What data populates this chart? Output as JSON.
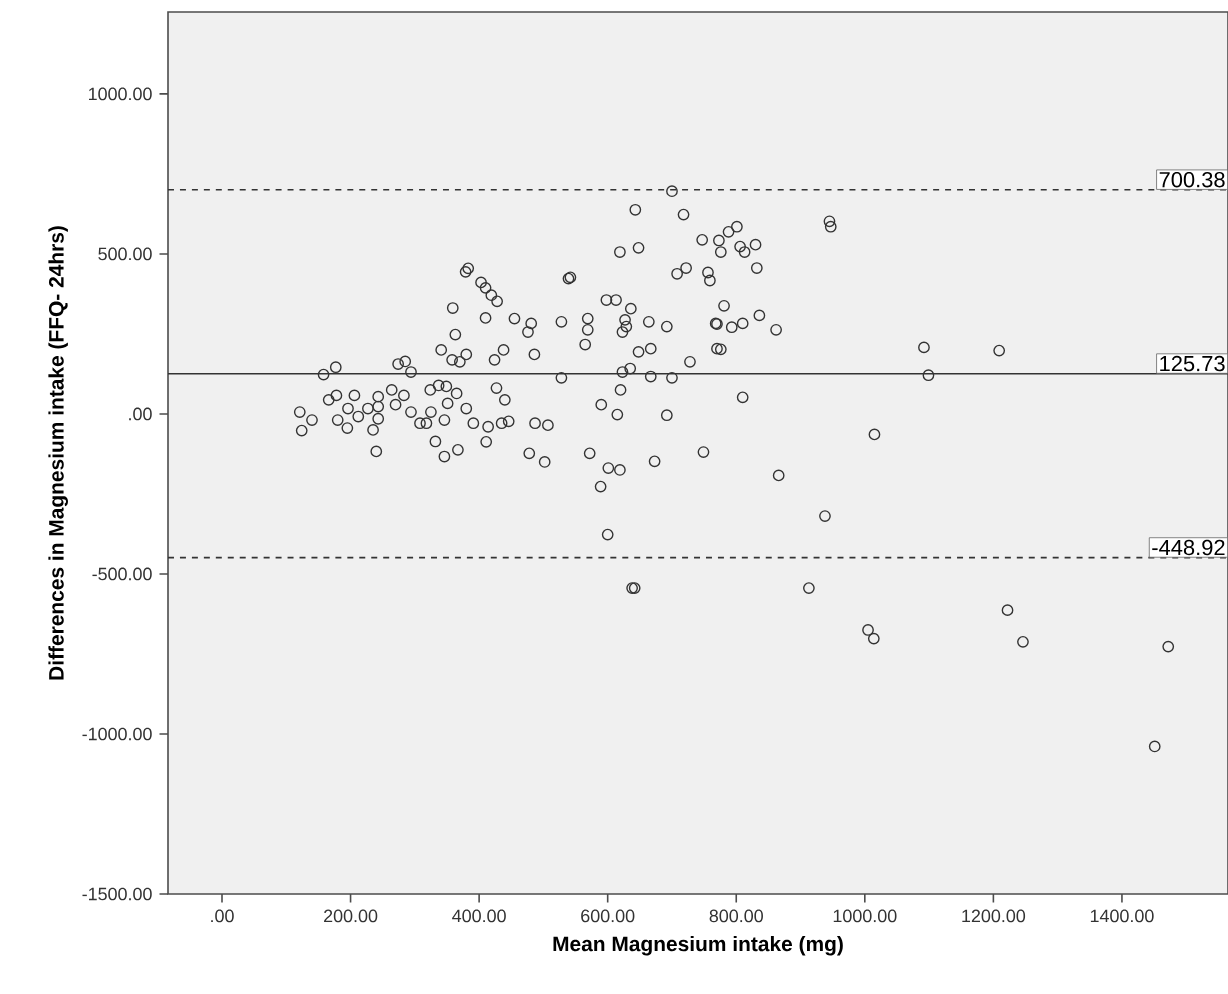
{
  "chart_data": {
    "type": "scatter",
    "xlabel": "Mean Magnesium intake (mg)",
    "ylabel": "Differences in Magnesium intake (FFQ- 24hrs)",
    "xlim": [
      -84,
      1565
    ],
    "ylim": [
      -1500,
      1256
    ],
    "xticks": [
      {
        "value": 0,
        "label": ".00"
      },
      {
        "value": 200,
        "label": "200.00"
      },
      {
        "value": 400,
        "label": "400.00"
      },
      {
        "value": 600,
        "label": "600.00"
      },
      {
        "value": 800,
        "label": "800.00"
      },
      {
        "value": 1000,
        "label": "1000.00"
      },
      {
        "value": 1200,
        "label": "1200.00"
      },
      {
        "value": 1400,
        "label": "1400.00"
      }
    ],
    "yticks": [
      {
        "value": -1500,
        "label": "-1500.00"
      },
      {
        "value": -1000,
        "label": "-1000.00"
      },
      {
        "value": -500,
        "label": "-500.00"
      },
      {
        "value": 0,
        "label": ".00"
      },
      {
        "value": 500,
        "label": "500.00"
      },
      {
        "value": 1000,
        "label": "1000.00"
      }
    ],
    "marker": "circle",
    "ref_lines": [
      {
        "axis": "y",
        "value": 700.38,
        "label": "700.38",
        "line_style": "dashed",
        "color": "#333333"
      },
      {
        "axis": "y",
        "value": 125.73,
        "label": "125.73",
        "line_style": "solid",
        "color": "#333333"
      },
      {
        "axis": "y",
        "value": -448.92,
        "label": "-448.92",
        "line_style": "dashed",
        "color": "#333333"
      }
    ],
    "series": [
      {
        "color": "#333333",
        "x": [
          121,
          124,
          140,
          158,
          177,
          166,
          178,
          180,
          195,
          196,
          206,
          212,
          227,
          235,
          240,
          243,
          243,
          243,
          264,
          270,
          274,
          285,
          283,
          294,
          294,
          308,
          318,
          324,
          325,
          332,
          337,
          341,
          346,
          346,
          349,
          351,
          358,
          359,
          363,
          365,
          367,
          370,
          380,
          380,
          391,
          410,
          411,
          414,
          424,
          427,
          438,
          435,
          440,
          446,
          455,
          476,
          478,
          481,
          486,
          487,
          502,
          507,
          528,
          528,
          565,
          569,
          569,
          572,
          590,
          589,
          601,
          600,
          619,
          615,
          620,
          623,
          635,
          623,
          629,
          638,
          642,
          648,
          667,
          667,
          664,
          673,
          692,
          692,
          700,
          728,
          749,
          770,
          770,
          379,
          383,
          403,
          410,
          419,
          428,
          539,
          542,
          619,
          648,
          643,
          700,
          718,
          747,
          708,
          722,
          756,
          759,
          598,
          613,
          636,
          627,
          773,
          788,
          801,
          776,
          806,
          813,
          830,
          832,
          781,
          768,
          793,
          810,
          836,
          862,
          776,
          810,
          866,
          945,
          947,
          1092,
          1099,
          1209,
          1015,
          938,
          913,
          1005,
          1014,
          1222,
          1246,
          1472,
          1451
        ],
        "values": [
          6,
          -52,
          -19,
          123,
          146,
          44,
          58,
          -19,
          -44,
          17,
          58,
          -8,
          17,
          -50,
          -117,
          -15,
          54,
          23,
          75,
          29,
          156,
          164,
          58,
          131,
          6,
          -29,
          -29,
          75,
          6,
          -86,
          89,
          200,
          -133,
          -19,
          86,
          33,
          169,
          331,
          248,
          64,
          -112,
          163,
          186,
          17,
          -29,
          300,
          -87,
          -40,
          169,
          81,
          200,
          -29,
          44,
          -23,
          298,
          256,
          -123,
          283,
          186,
          -29,
          -150,
          -35,
          288,
          113,
          217,
          263,
          298,
          -123,
          29,
          -227,
          -169,
          -377,
          -175,
          -2,
          75,
          131,
          142,
          256,
          273,
          -544,
          -544,
          194,
          204,
          117,
          288,
          -148,
          273,
          -4,
          113,
          163,
          -119,
          204,
          281,
          444,
          455,
          411,
          394,
          371,
          352,
          423,
          427,
          506,
          519,
          638,
          696,
          623,
          544,
          438,
          456,
          442,
          417,
          356,
          356,
          329,
          294,
          542,
          569,
          585,
          506,
          523,
          506,
          529,
          456,
          338,
          283,
          271,
          283,
          308,
          263,
          202,
          52,
          -192,
          602,
          585,
          208,
          121,
          198,
          -64,
          -319,
          -544,
          -675,
          -702,
          -613,
          -712,
          -727,
          -1039
        ]
      }
    ]
  }
}
